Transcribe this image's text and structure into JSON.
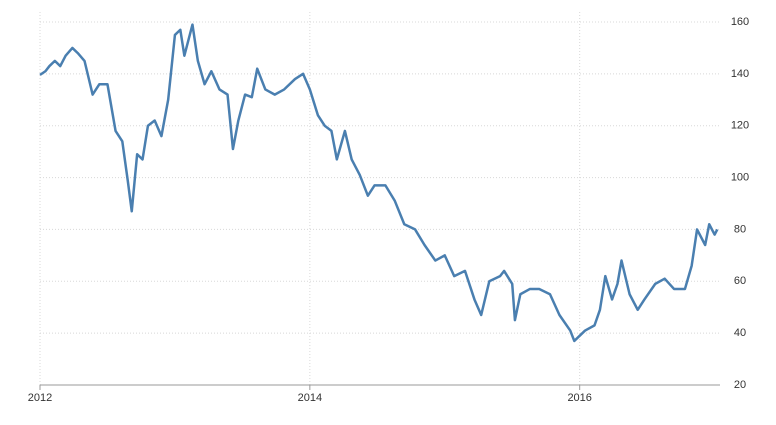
{
  "chart_data": {
    "type": "line",
    "color": "#4a7fb0",
    "x": [
      2012.0,
      2012.04,
      2012.07,
      2012.11,
      2012.15,
      2012.19,
      2012.24,
      2012.28,
      2012.33,
      2012.39,
      2012.44,
      2012.5,
      2012.56,
      2012.61,
      2012.65,
      2012.68,
      2012.72,
      2012.76,
      2012.8,
      2012.85,
      2012.9,
      2012.95,
      2013.0,
      2013.04,
      2013.07,
      2013.13,
      2013.17,
      2013.22,
      2013.27,
      2013.33,
      2013.39,
      2013.43,
      2013.47,
      2013.52,
      2013.57,
      2013.61,
      2013.67,
      2013.74,
      2013.81,
      2013.89,
      2013.95,
      2014.0,
      2014.06,
      2014.11,
      2014.16,
      2014.2,
      2014.26,
      2014.31,
      2014.37,
      2014.43,
      2014.48,
      2014.56,
      2014.63,
      2014.7,
      2014.78,
      2014.85,
      2014.93,
      2015.0,
      2015.07,
      2015.15,
      2015.22,
      2015.27,
      2015.33,
      2015.41,
      2015.44,
      2015.5,
      2015.52,
      2015.56,
      2015.63,
      2015.7,
      2015.78,
      2015.85,
      2015.93,
      2015.96,
      2016.04,
      2016.11,
      2016.15,
      2016.19,
      2016.24,
      2016.28,
      2016.31,
      2016.37,
      2016.43,
      2016.48,
      2016.56,
      2016.63,
      2016.7,
      2016.78,
      2016.83,
      2016.87,
      2016.93,
      2016.96,
      2017.0,
      2017.02
    ],
    "values": [
      139.6,
      141,
      143,
      145,
      143,
      147,
      150,
      148,
      145,
      132,
      136,
      136,
      118,
      114,
      99,
      87,
      109,
      107,
      120,
      122,
      116,
      130,
      155,
      157,
      147,
      159,
      145,
      136,
      141,
      134,
      132,
      111,
      122,
      132,
      131,
      142,
      134,
      132,
      134,
      138,
      140,
      134,
      124,
      120,
      118,
      107,
      118,
      107,
      101,
      93,
      97,
      97,
      91,
      82,
      80,
      74,
      68,
      70,
      62,
      64,
      53,
      47,
      60,
      62,
      64,
      59,
      45,
      55,
      57,
      57,
      55,
      47,
      41,
      37,
      41,
      43,
      49,
      62,
      53,
      59,
      68,
      55,
      49,
      53,
      59,
      61,
      57,
      57,
      66,
      80,
      74,
      82,
      78,
      80
    ],
    "xlim": [
      2012,
      2017.04
    ],
    "xticks": [
      2012,
      2014,
      2016
    ],
    "ylim": [
      20,
      160
    ],
    "yticks": [
      20,
      40,
      60,
      80,
      100,
      120,
      140,
      160
    ],
    "grid": true
  }
}
